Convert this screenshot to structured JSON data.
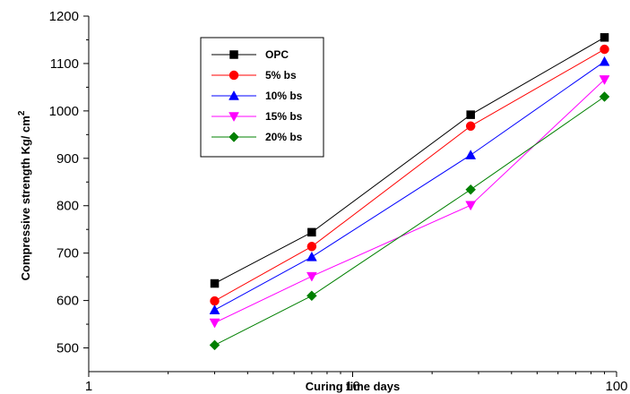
{
  "chart_data": {
    "type": "line",
    "xlabel": "Curing time days",
    "ylabel": "Compressive strength Kg/ cm",
    "ylabel_superscript": "2",
    "x_scale": "log",
    "xlim": [
      1,
      100
    ],
    "ylim": [
      450,
      1200
    ],
    "x_ticks": [
      1,
      10,
      100
    ],
    "y_ticks": [
      500,
      600,
      700,
      800,
      900,
      1000,
      1100,
      1200
    ],
    "x": [
      3,
      7,
      28,
      90
    ],
    "legend_position": "top-left",
    "grid": false,
    "series": [
      {
        "name": "OPC",
        "values": [
          636,
          744,
          992,
          1155
        ],
        "color": "#000000",
        "marker": "square"
      },
      {
        "name": "5%  bs",
        "values": [
          599,
          714,
          968,
          1130
        ],
        "color": "#ff0000",
        "marker": "circle"
      },
      {
        "name": "10%  bs",
        "values": [
          580,
          692,
          907,
          1104
        ],
        "color": "#0000ff",
        "marker": "triangle-up"
      },
      {
        "name": "15% bs",
        "values": [
          553,
          651,
          801,
          1066
        ],
        "color": "#ff00ff",
        "marker": "triangle-down"
      },
      {
        "name": "20% bs",
        "values": [
          506,
          610,
          834,
          1030
        ],
        "color": "#008000",
        "marker": "diamond"
      }
    ]
  }
}
